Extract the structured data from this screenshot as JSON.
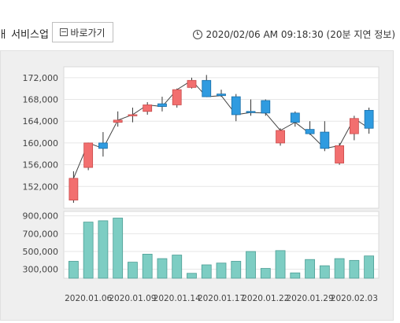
{
  "header": {
    "title": "ㅐ 서비스업",
    "shortcut_label": "바로가기",
    "timestamp": "2020/02/06 AM 09:18:30 (20분 지연 정보)"
  },
  "chart_data": [
    {
      "type": "candlestick",
      "ylim": [
        148000,
        174000
      ],
      "y_ticks": [
        152000,
        156000,
        160000,
        164000,
        168000,
        172000
      ],
      "y_tick_labels": [
        "152,000",
        "156,000",
        "160,000",
        "164,000",
        "168,000",
        "172,000"
      ],
      "up_color": "#f26f6f",
      "down_color": "#2f9be0",
      "line_color": "#444444",
      "candles": [
        {
          "open": 149500,
          "close": 153500,
          "high": 154800,
          "low": 149000
        },
        {
          "open": 155500,
          "close": 160000,
          "high": 160000,
          "low": 155000
        },
        {
          "open": 160000,
          "close": 159000,
          "high": 162000,
          "low": 157500
        },
        {
          "open": 163800,
          "close": 164200,
          "high": 165800,
          "low": 163000
        },
        {
          "open": 165000,
          "close": 165200,
          "high": 166500,
          "low": 163800
        },
        {
          "open": 165800,
          "close": 167000,
          "high": 167500,
          "low": 165200
        },
        {
          "open": 167200,
          "close": 166700,
          "high": 168500,
          "low": 165800
        },
        {
          "open": 167000,
          "close": 169800,
          "high": 170000,
          "low": 166500
        },
        {
          "open": 170200,
          "close": 171500,
          "high": 172000,
          "low": 170000
        },
        {
          "open": 171500,
          "close": 168500,
          "high": 172500,
          "low": 168500
        },
        {
          "open": 169000,
          "close": 168700,
          "high": 169800,
          "low": 168500
        },
        {
          "open": 168500,
          "close": 165200,
          "high": 169000,
          "low": 164000
        },
        {
          "open": 165800,
          "close": 165600,
          "high": 168000,
          "low": 165000
        },
        {
          "open": 167800,
          "close": 165500,
          "high": 168000,
          "low": 165000
        },
        {
          "open": 160000,
          "close": 162300,
          "high": 162700,
          "low": 159500
        },
        {
          "open": 165500,
          "close": 163800,
          "high": 165800,
          "low": 163000
        },
        {
          "open": 162500,
          "close": 161700,
          "high": 164000,
          "low": 161500
        },
        {
          "open": 162000,
          "close": 159000,
          "high": 164000,
          "low": 158500
        },
        {
          "open": 156300,
          "close": 159500,
          "high": 160000,
          "low": 156000
        },
        {
          "open": 161700,
          "close": 164500,
          "high": 165000,
          "low": 160500
        },
        {
          "open": 166000,
          "close": 162700,
          "high": 166500,
          "low": 161700
        }
      ]
    },
    {
      "type": "bar",
      "ylim": [
        200000,
        950000
      ],
      "y_ticks": [
        300000,
        500000,
        700000,
        900000
      ],
      "y_tick_labels": [
        "300,000",
        "500,000",
        "700,000",
        "900,000"
      ],
      "bar_color": "#7dcdc3",
      "bar_border": "#4d9e95",
      "values": [
        390000,
        830000,
        845000,
        875000,
        380000,
        470000,
        420000,
        460000,
        255000,
        350000,
        370000,
        390000,
        500000,
        310000,
        510000,
        260000,
        410000,
        340000,
        420000,
        400000,
        450000
      ],
      "x_tick_labels": [
        "2020.01.06",
        "2020.01.09",
        "2020.01.14",
        "2020.01.17",
        "2020.01.22",
        "2020.01.29",
        "2020.02.03"
      ],
      "x_tick_indices": [
        1,
        4,
        7,
        10,
        13,
        16,
        19
      ]
    }
  ]
}
